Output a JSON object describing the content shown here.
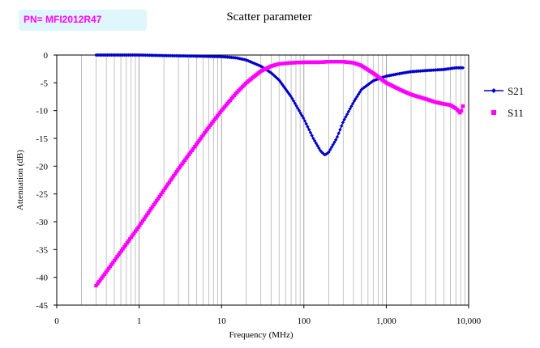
{
  "pn_label": "PN= MFI2012R47",
  "chart_data": {
    "type": "line",
    "title": "Scatter parameter",
    "xlabel": "Frequency (MHz)",
    "ylabel": "Attenuation (dB)",
    "xscale": "log",
    "xlim": [
      0.1,
      10000
    ],
    "ylim": [
      -45,
      0
    ],
    "x_tick_labels": [
      "0",
      "1",
      "10",
      "100",
      "1,000",
      "10,000"
    ],
    "y_tick_labels": [
      "0",
      "-5",
      "-10",
      "-15",
      "-20",
      "-25",
      "-30",
      "-35",
      "-40",
      "-45"
    ],
    "grid": "vertical log gridlines",
    "legend_position": "right",
    "series": [
      {
        "name": "S21",
        "color": "#0000cc",
        "marker": "diamond",
        "x": [
          0.3,
          0.5,
          1,
          2,
          5,
          10,
          15,
          20,
          30,
          40,
          50,
          70,
          100,
          130,
          160,
          180,
          200,
          250,
          300,
          400,
          500,
          700,
          1000,
          1500,
          2000,
          3000,
          5000,
          7000,
          8500
        ],
        "y": [
          0,
          0,
          0,
          -0.1,
          -0.2,
          -0.3,
          -0.5,
          -0.9,
          -2.0,
          -3.2,
          -4.5,
          -7.5,
          -11.5,
          -15.0,
          -17.3,
          -18.0,
          -17.5,
          -15.0,
          -12.0,
          -8.5,
          -6.2,
          -4.6,
          -3.8,
          -3.3,
          -3.0,
          -2.8,
          -2.6,
          -2.3,
          -2.3
        ]
      },
      {
        "name": "S11",
        "color": "#ff00ff",
        "marker": "square",
        "x": [
          0.3,
          0.4,
          0.5,
          0.7,
          1,
          1.5,
          2,
          3,
          5,
          7,
          10,
          15,
          20,
          30,
          40,
          50,
          70,
          100,
          150,
          200,
          300,
          400,
          500,
          700,
          1000,
          1500,
          2000,
          3000,
          4000,
          5000,
          6000,
          7000,
          8000,
          8500
        ],
        "y": [
          -41.5,
          -39.0,
          -37.0,
          -34.0,
          -30.8,
          -27.0,
          -24.3,
          -20.5,
          -16.0,
          -13.0,
          -10.0,
          -6.9,
          -5.0,
          -2.9,
          -2.0,
          -1.6,
          -1.4,
          -1.3,
          -1.3,
          -1.2,
          -1.2,
          -1.4,
          -1.9,
          -3.3,
          -5.0,
          -6.3,
          -7.1,
          -7.9,
          -8.5,
          -8.8,
          -9.0,
          -9.6,
          -10.5,
          -9.2
        ]
      }
    ]
  }
}
